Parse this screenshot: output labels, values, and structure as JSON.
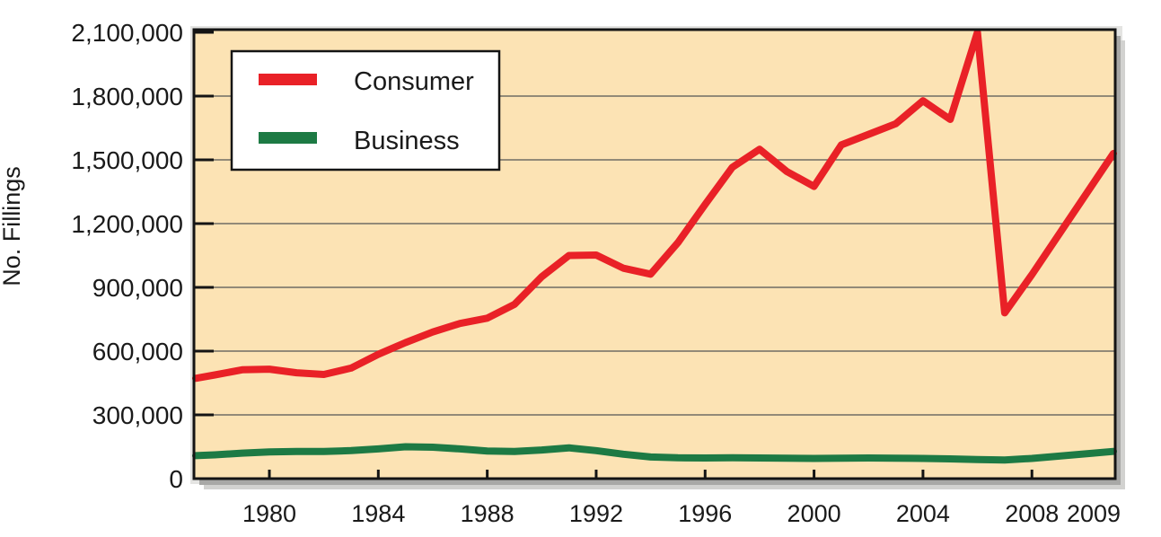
{
  "figure": {
    "background": "#ffffff",
    "plot_background": "#fce3b4",
    "grid_color": "#6e6c64",
    "border_color": "#141414",
    "text_color": "#1a1a1a",
    "shadow_color": "#a8a8a6"
  },
  "chart_data": {
    "type": "line",
    "title": "",
    "xlabel": "",
    "ylabel": "No. Fillings",
    "ylim": [
      0,
      2100000
    ],
    "grid": true,
    "legend_position": "top-left",
    "yticks": [
      0,
      300000,
      600000,
      900000,
      1200000,
      1500000,
      1800000,
      2100000
    ],
    "ytick_labels": [
      "0",
      "300,000",
      "600,000",
      "900,000",
      "1,200,000",
      "1,500,000",
      "1,800,000",
      "2,100,000"
    ],
    "xtick_years": [
      1980,
      1984,
      1988,
      1992,
      1996,
      2000,
      2004,
      2008
    ],
    "xtick_labels": [
      "1980",
      "1984",
      "1988",
      "1992",
      "1996",
      "2000",
      "2004",
      "2008"
    ],
    "x_edge_label": "2009",
    "years": [
      1977,
      1978,
      1979,
      1980,
      1981,
      1982,
      1983,
      1984,
      1985,
      1986,
      1987,
      1988,
      1989,
      1990,
      1991,
      1992,
      1993,
      1994,
      1995,
      1996,
      1997,
      1998,
      1999,
      2000,
      2001,
      2002,
      2003,
      2004,
      2005,
      2006,
      2007,
      2008,
      2009
    ],
    "series": [
      {
        "name": "Consumer",
        "color": "#e92127",
        "values": [
          472000,
          488000,
          512000,
          515000,
          498000,
          490000,
          520000,
          585000,
          640000,
          690000,
          730000,
          755000,
          820000,
          950000,
          1050000,
          1052000,
          990000,
          962000,
          1110000,
          1290000,
          1465000,
          1550000,
          1445000,
          1375000,
          1570000,
          1620000,
          1670000,
          1778000,
          1690000,
          2100000,
          780000,
          960000,
          1530000
        ]
      },
      {
        "name": "Business",
        "color": "#1d7a44",
        "values": [
          108000,
          112000,
          120000,
          126000,
          128000,
          128000,
          132000,
          140000,
          150000,
          148000,
          140000,
          130000,
          128000,
          135000,
          145000,
          132000,
          115000,
          102000,
          98000,
          97000,
          98000,
          97000,
          96000,
          95000,
          96000,
          97000,
          96000,
          95000,
          93000,
          90000,
          88000,
          95000,
          128000
        ]
      }
    ],
    "legend": {
      "entries": [
        {
          "label": "Consumer",
          "color": "#e92127"
        },
        {
          "label": "Business",
          "color": "#1d7a44"
        }
      ]
    }
  }
}
